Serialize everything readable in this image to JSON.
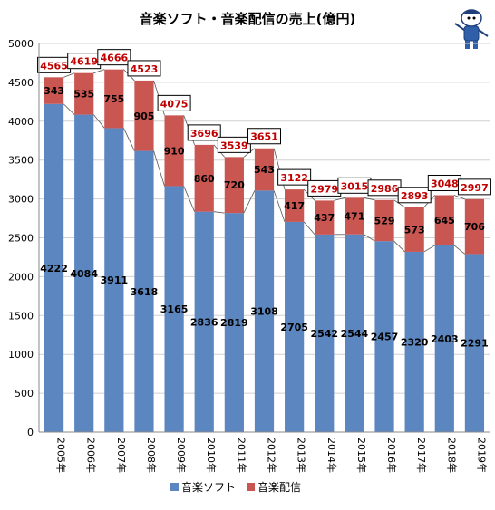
{
  "chart_data": {
    "type": "bar",
    "stacked": true,
    "title": "音楽ソフト・音楽配信の売上(億円)",
    "categories": [
      "2005年",
      "2006年",
      "2007年",
      "2008年",
      "2009年",
      "2010年",
      "2011年",
      "2012年",
      "2013年",
      "2014年",
      "2015年",
      "2016年",
      "2017年",
      "2018年",
      "2019年"
    ],
    "series": [
      {
        "name": "音楽ソフト",
        "color": "#5b86c0",
        "values": [
          4222,
          4084,
          3911,
          3618,
          3165,
          2836,
          2819,
          3108,
          2705,
          2542,
          2544,
          2457,
          2320,
          2403,
          2291
        ]
      },
      {
        "name": "音楽配信",
        "color": "#c95651",
        "values": [
          343,
          535,
          755,
          905,
          910,
          860,
          720,
          543,
          417,
          437,
          471,
          529,
          573,
          645,
          706
        ]
      }
    ],
    "totals": [
      4565,
      4619,
      4666,
      4523,
      4075,
      3696,
      3539,
      3651,
      3122,
      2979,
      3015,
      2986,
      2893,
      3048,
      2997
    ],
    "ylim": [
      0,
      5000
    ],
    "yticks": [
      0,
      500,
      1000,
      1500,
      2000,
      2500,
      3000,
      3500,
      4000,
      4500,
      5000
    ],
    "xlabel": "",
    "ylabel": "",
    "grid": true,
    "legend": "bottom"
  },
  "colors": {
    "total_label": "#c00000",
    "grid": "#d0d0d0",
    "axis": "#888888"
  },
  "mascot_icon": "cartoon-character-icon"
}
